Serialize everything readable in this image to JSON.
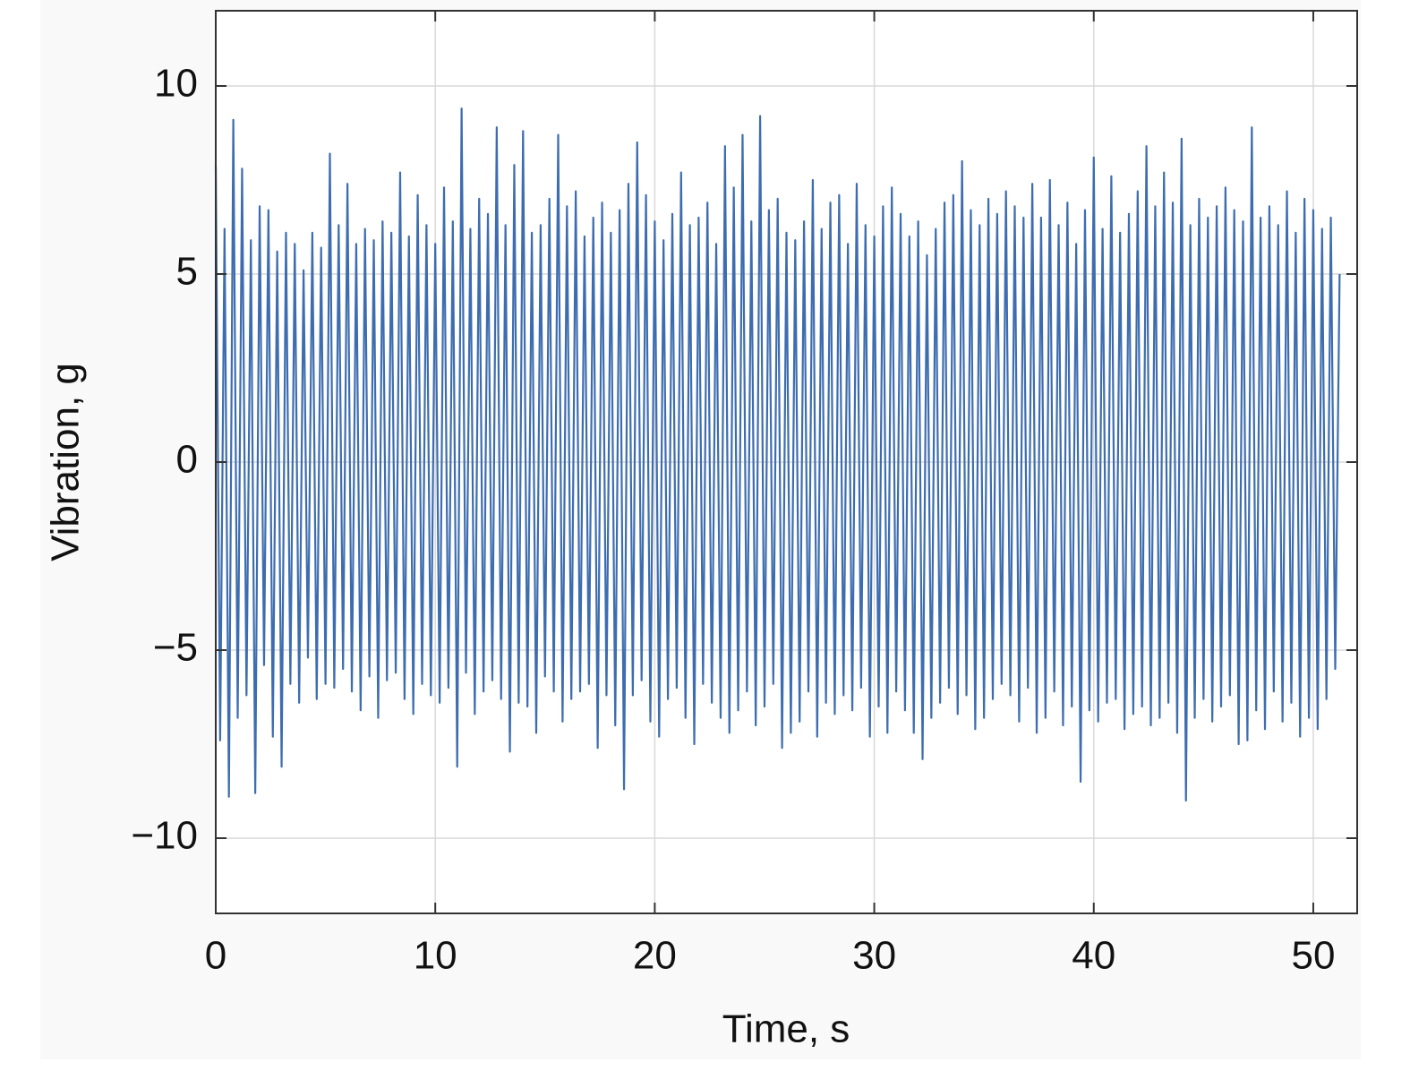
{
  "chart_data": {
    "type": "line",
    "xlabel": "Time, s",
    "ylabel": "Vibration, g",
    "color": "#3d6db0",
    "grid": true,
    "xlim": [
      0,
      52
    ],
    "ylim": [
      -12,
      12
    ],
    "xticks": [
      0,
      10,
      20,
      30,
      40,
      50
    ],
    "yticks": [
      {
        "value": -10,
        "label": "−10"
      },
      {
        "value": -5,
        "label": "−5"
      },
      0,
      5,
      10
    ],
    "x": [
      0,
      0.2,
      0.4,
      0.6,
      0.8,
      1,
      1.2,
      1.4,
      1.6,
      1.8,
      2,
      2.2,
      2.4,
      2.6,
      2.8,
      3,
      3.2,
      3.4,
      3.6,
      3.8,
      4,
      4.2,
      4.4,
      4.6,
      4.8,
      5,
      5.2,
      5.4,
      5.6,
      5.8,
      6,
      6.2,
      6.4,
      6.6,
      6.8,
      7,
      7.2,
      7.4,
      7.6,
      7.8,
      8,
      8.2,
      8.4,
      8.6,
      8.8,
      9,
      9.2,
      9.4,
      9.6,
      9.8,
      10,
      10.2,
      10.4,
      10.6,
      10.8,
      11,
      11.2,
      11.4,
      11.6,
      11.8,
      12,
      12.2,
      12.4,
      12.6,
      12.8,
      13,
      13.2,
      13.4,
      13.6,
      13.8,
      14,
      14.2,
      14.4,
      14.6,
      14.8,
      15,
      15.2,
      15.4,
      15.6,
      15.8,
      16,
      16.2,
      16.4,
      16.6,
      16.8,
      17,
      17.2,
      17.4,
      17.6,
      17.8,
      18,
      18.2,
      18.4,
      18.6,
      18.8,
      19,
      19.2,
      19.4,
      19.6,
      19.8,
      20,
      20.2,
      20.4,
      20.6,
      20.8,
      21,
      21.2,
      21.4,
      21.6,
      21.8,
      22,
      22.2,
      22.4,
      22.6,
      22.8,
      23,
      23.2,
      23.4,
      23.6,
      23.8,
      24,
      24.2,
      24.4,
      24.6,
      24.8,
      25,
      25.2,
      25.4,
      25.6,
      25.8,
      26,
      26.2,
      26.4,
      26.6,
      26.8,
      27,
      27.2,
      27.4,
      27.6,
      27.8,
      28,
      28.2,
      28.4,
      28.6,
      28.8,
      29,
      29.2,
      29.4,
      29.6,
      29.8,
      30,
      30.2,
      30.4,
      30.6,
      30.8,
      31,
      31.2,
      31.4,
      31.6,
      31.8,
      32,
      32.2,
      32.4,
      32.6,
      32.8,
      33,
      33.2,
      33.4,
      33.6,
      33.8,
      34,
      34.2,
      34.4,
      34.6,
      34.8,
      35,
      35.2,
      35.4,
      35.6,
      35.8,
      36,
      36.2,
      36.4,
      36.6,
      36.8,
      37,
      37.2,
      37.4,
      37.6,
      37.8,
      38,
      38.2,
      38.4,
      38.6,
      38.8,
      39,
      39.2,
      39.4,
      39.6,
      39.8,
      40,
      40.2,
      40.4,
      40.6,
      40.8,
      41,
      41.2,
      41.4,
      41.6,
      41.8,
      42,
      42.2,
      42.4,
      42.6,
      42.8,
      43,
      43.2,
      43.4,
      43.6,
      43.8,
      44,
      44.2,
      44.4,
      44.6,
      44.8,
      45,
      45.2,
      45.4,
      45.6,
      45.8,
      46,
      46.2,
      46.4,
      46.6,
      46.8,
      47,
      47.2,
      47.4,
      47.6,
      47.8,
      48,
      48.2,
      48.4,
      48.6,
      48.8,
      49,
      49.2,
      49.4,
      49.6,
      49.8,
      50,
      50.2,
      50.4,
      50.6,
      50.8,
      51,
      51.2
    ],
    "values": [
      7.9,
      -7.4,
      6.2,
      -8.9,
      9.1,
      -6.8,
      7.8,
      -6.2,
      5.9,
      -8.8,
      6.8,
      -5.4,
      6.7,
      -7.3,
      5.6,
      -8.1,
      6.1,
      -5.9,
      5.8,
      -6.4,
      5.1,
      -5.2,
      6.1,
      -6.3,
      5.7,
      -5.9,
      8.2,
      -6.0,
      6.3,
      -5.5,
      7.4,
      -6.1,
      5.8,
      -6.6,
      6.2,
      -5.7,
      5.9,
      -6.8,
      6.4,
      -5.8,
      6.1,
      -5.6,
      7.7,
      -6.3,
      6.0,
      -6.7,
      7.1,
      -5.9,
      6.3,
      -6.2,
      5.8,
      -6.4,
      7.3,
      -6.0,
      6.4,
      -8.1,
      9.4,
      -5.6,
      6.2,
      -6.7,
      7.0,
      -6.1,
      6.6,
      -5.8,
      8.9,
      -6.3,
      6.3,
      -7.7,
      7.9,
      -6.4,
      8.8,
      -6.5,
      6.1,
      -7.2,
      6.3,
      -5.7,
      7.0,
      -6.1,
      8.7,
      -6.9,
      6.8,
      -6.3,
      7.2,
      -6.1,
      6.0,
      -5.9,
      6.5,
      -7.6,
      6.9,
      -6.2,
      6.1,
      -7.0,
      6.7,
      -8.7,
      7.4,
      -6.2,
      8.5,
      -5.8,
      7.1,
      -6.9,
      6.4,
      -7.3,
      5.9,
      -6.3,
      6.6,
      -6.0,
      7.7,
      -6.8,
      6.3,
      -7.5,
      6.5,
      -5.9,
      6.9,
      -6.4,
      5.8,
      -6.8,
      8.4,
      -7.2,
      7.3,
      -6.6,
      8.7,
      -6.1,
      6.4,
      -7.0,
      9.2,
      -6.5,
      6.7,
      -5.9,
      7.0,
      -7.6,
      6.1,
      -7.2,
      5.9,
      -6.9,
      6.4,
      -6.1,
      7.5,
      -7.3,
      6.2,
      -6.4,
      6.9,
      -6.7,
      7.1,
      -6.2,
      5.8,
      -6.6,
      7.4,
      -6.0,
      6.3,
      -7.3,
      6.0,
      -6.5,
      6.8,
      -7.2,
      7.3,
      -6.1,
      6.6,
      -6.6,
      6.0,
      -7.2,
      6.4,
      -7.9,
      5.5,
      -6.8,
      6.2,
      -6.4,
      6.9,
      -6.0,
      7.1,
      -6.7,
      8.0,
      -6.2,
      6.7,
      -7.1,
      6.3,
      -6.8,
      7.0,
      -6.3,
      6.6,
      -5.9,
      7.2,
      -6.2,
      6.8,
      -6.9,
      6.5,
      -6.0,
      7.4,
      -7.2,
      6.5,
      -6.8,
      7.5,
      -6.1,
      6.3,
      -7.0,
      6.9,
      -6.5,
      5.8,
      -8.5,
      6.7,
      -6.6,
      8.1,
      -6.9,
      6.2,
      -6.4,
      7.6,
      -6.3,
      6.1,
      -7.1,
      6.6,
      -6.7,
      7.2,
      -6.5,
      8.4,
      -7.0,
      6.8,
      -6.8,
      7.7,
      -6.4,
      6.9,
      -7.2,
      8.6,
      -9.0,
      6.3,
      -6.8,
      7.0,
      -6.3,
      6.5,
      -6.9,
      6.8,
      -6.5,
      7.3,
      -6.2,
      6.7,
      -7.5,
      6.4,
      -7.4,
      8.9,
      -6.6,
      6.5,
      -7.1,
      6.8,
      -6.1,
      6.3,
      -6.9,
      7.2,
      -6.4,
      6.1,
      -7.3,
      7.0,
      -6.8,
      6.7,
      -7.1,
      6.2,
      -6.3,
      6.5,
      -5.5,
      5.0
    ]
  }
}
